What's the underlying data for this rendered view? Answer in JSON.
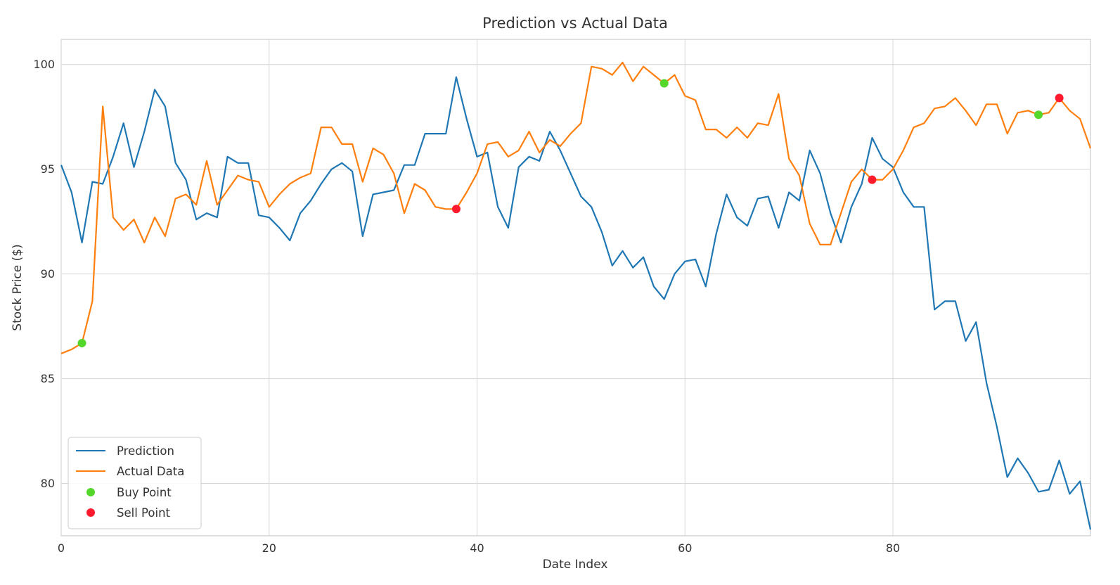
{
  "chart_data": {
    "type": "line",
    "title": "Prediction vs Actual Data",
    "xlabel": "Date Index",
    "ylabel": "Stock Price ($)",
    "xlim": [
      0,
      99
    ],
    "ylim": [
      77.5,
      101.2
    ],
    "xticks": [
      0,
      20,
      40,
      60,
      80
    ],
    "yticks": [
      80,
      85,
      90,
      95,
      100
    ],
    "grid": true,
    "legend_position": "lower-left",
    "series": [
      {
        "name": "Prediction",
        "color": "#1f77b4",
        "values": [
          95.2,
          93.9,
          91.5,
          94.4,
          94.3,
          95.6,
          97.2,
          95.1,
          96.8,
          98.8,
          98.0,
          95.3,
          94.5,
          92.6,
          92.9,
          92.7,
          95.6,
          95.3,
          95.3,
          92.8,
          92.7,
          92.2,
          91.6,
          92.9,
          93.5,
          94.3,
          95.0,
          95.3,
          94.9,
          91.8,
          93.8,
          93.9,
          94.0,
          95.2,
          95.2,
          96.7,
          96.7,
          96.7,
          99.4,
          97.4,
          95.6,
          95.8,
          93.2,
          92.2,
          95.1,
          95.6,
          95.4,
          96.8,
          95.9,
          94.8,
          93.7,
          93.2,
          92.0,
          90.4,
          91.1,
          90.3,
          90.8,
          89.4,
          88.8,
          90.0,
          90.6,
          90.7,
          89.4,
          91.9,
          93.8,
          92.7,
          92.3,
          93.6,
          93.7,
          92.2,
          93.9,
          93.5,
          95.9,
          94.8,
          92.9,
          91.5,
          93.2,
          94.3,
          96.5,
          95.5,
          95.1,
          93.9,
          93.2,
          93.2,
          88.3,
          88.7,
          88.7,
          86.8,
          87.7,
          84.8,
          82.7,
          80.3,
          81.2,
          80.5,
          79.6,
          79.7,
          81.1,
          79.5,
          80.1,
          77.8
        ]
      },
      {
        "name": "Actual Data",
        "color": "#ff7f0e",
        "values": [
          86.2,
          86.4,
          86.7,
          88.7,
          98.0,
          92.7,
          92.1,
          92.6,
          91.5,
          92.7,
          91.8,
          93.6,
          93.8,
          93.3,
          95.4,
          93.3,
          94.0,
          94.7,
          94.5,
          94.4,
          93.2,
          93.8,
          94.3,
          94.6,
          94.8,
          97.0,
          97.0,
          96.2,
          96.2,
          94.4,
          96.0,
          95.7,
          94.8,
          92.9,
          94.3,
          94.0,
          93.2,
          93.1,
          93.1,
          93.9,
          94.8,
          96.2,
          96.3,
          95.6,
          95.9,
          96.8,
          95.8,
          96.4,
          96.1,
          96.7,
          97.2,
          99.9,
          99.8,
          99.5,
          100.1,
          99.2,
          99.9,
          99.5,
          99.1,
          99.5,
          98.5,
          98.3,
          96.9,
          96.9,
          96.5,
          97.0,
          96.5,
          97.2,
          97.1,
          98.6,
          95.5,
          94.7,
          92.4,
          91.4,
          91.4,
          92.9,
          94.4,
          95.0,
          94.5,
          94.5,
          95.0,
          95.9,
          97.0,
          97.2,
          97.9,
          98.0,
          98.4,
          97.8,
          97.1,
          98.1,
          98.1,
          96.7,
          97.7,
          97.8,
          97.6,
          97.7,
          98.4,
          97.8,
          97.4,
          96.0
        ]
      }
    ],
    "buy_points": {
      "name": "Buy Point",
      "color": "#54d62c",
      "points": [
        [
          2,
          86.7
        ],
        [
          58,
          99.1
        ],
        [
          94,
          97.6
        ]
      ]
    },
    "sell_points": {
      "name": "Sell Point",
      "color": "#ff1a2e",
      "points": [
        [
          38,
          93.1
        ],
        [
          78,
          94.5
        ],
        [
          96,
          98.4
        ]
      ]
    }
  }
}
